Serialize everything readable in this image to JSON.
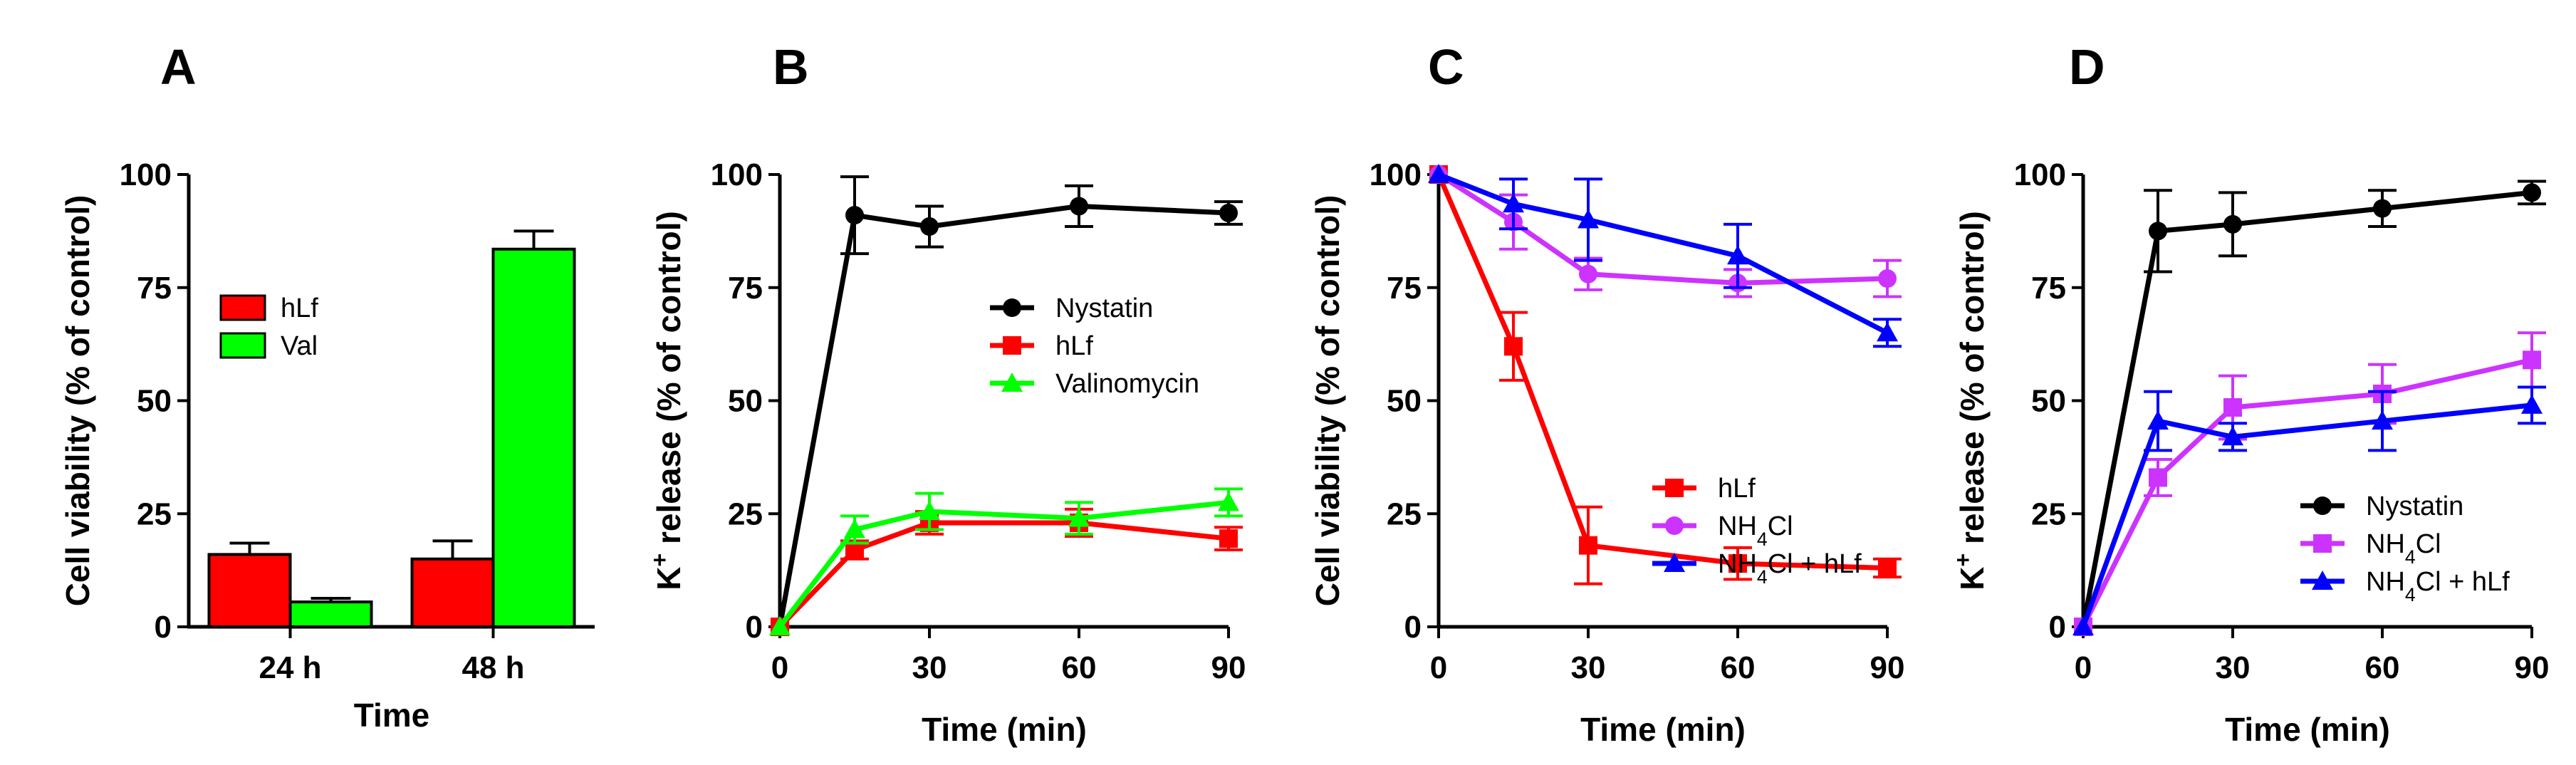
{
  "chart_data": [
    {
      "panel": "A",
      "type": "bar",
      "xlabel": "Time",
      "ylabel": "Cell viability (% of control)",
      "ylim": [
        0,
        100
      ],
      "yticks": [
        0,
        25,
        50,
        75,
        100
      ],
      "categories": [
        "24 h",
        "48 h"
      ],
      "series": [
        {
          "name": "hLf",
          "color": "#ff0000",
          "values": [
            16,
            15
          ],
          "errors": [
            2.5,
            4
          ]
        },
        {
          "name": "Val",
          "color": "#00ff00",
          "values": [
            5.5,
            83.5
          ],
          "errors": [
            0.8,
            4
          ]
        }
      ],
      "legend": "upper-left",
      "grid": false
    },
    {
      "panel": "B",
      "type": "line",
      "xlabel": "Time (min)",
      "ylabel": "K⁺ release (% of control)",
      "xlim": [
        0,
        90
      ],
      "ylim": [
        0,
        100
      ],
      "xticks": [
        0,
        30,
        60,
        90
      ],
      "yticks": [
        0,
        25,
        50,
        75,
        100
      ],
      "x": [
        0,
        15,
        30,
        60,
        90
      ],
      "series": [
        {
          "name": "Nystatin",
          "color": "#000000",
          "marker": "circle",
          "values": [
            0,
            91,
            88.5,
            93,
            91.5
          ],
          "errors": [
            0,
            8.5,
            4.5,
            4.5,
            2.5
          ]
        },
        {
          "name": "hLf",
          "color": "#ff0000",
          "marker": "square",
          "values": [
            0,
            17,
            23,
            23,
            19.5
          ],
          "errors": [
            0,
            2,
            2.5,
            3,
            2.5
          ]
        },
        {
          "name": "Valinomycin",
          "color": "#00ff00",
          "marker": "triangle",
          "values": [
            0,
            21.5,
            25.5,
            24,
            27.5
          ],
          "errors": [
            0,
            3,
            4,
            3.5,
            3
          ]
        }
      ],
      "legend": "right",
      "grid": false
    },
    {
      "panel": "C",
      "type": "line",
      "xlabel": "Time (min)",
      "ylabel": "Cell viability (% of control)",
      "xlim": [
        0,
        90
      ],
      "ylim": [
        0,
        100
      ],
      "xticks": [
        0,
        30,
        60,
        90
      ],
      "yticks": [
        0,
        25,
        50,
        75,
        100
      ],
      "x": [
        0,
        15,
        30,
        60,
        90
      ],
      "series": [
        {
          "name": "hLf",
          "color": "#ff0000",
          "marker": "square",
          "values": [
            100,
            62,
            18,
            14,
            13
          ],
          "errors": [
            0,
            7.5,
            8.5,
            3.5,
            2
          ]
        },
        {
          "name": "NH₄Cl",
          "color": "#cc33ff",
          "marker": "circle",
          "values": [
            100,
            89.5,
            78,
            76,
            77
          ],
          "errors": [
            0,
            6,
            3.5,
            3,
            4
          ]
        },
        {
          "name": "NH₄Cl + hLf",
          "color": "#0000ff",
          "marker": "triangle",
          "values": [
            100,
            93.5,
            90,
            82,
            65
          ],
          "errors": [
            0,
            5.5,
            9,
            7,
            3
          ]
        }
      ],
      "legend": "lower-right",
      "grid": false
    },
    {
      "panel": "D",
      "type": "line",
      "xlabel": "Time (min)",
      "ylabel": "K⁺ release (% of control)",
      "xlim": [
        0,
        90
      ],
      "ylim": [
        0,
        100
      ],
      "xticks": [
        0,
        30,
        60,
        90
      ],
      "yticks": [
        0,
        25,
        50,
        75,
        100
      ],
      "x": [
        0,
        15,
        30,
        60,
        90
      ],
      "series": [
        {
          "name": "Nystatin",
          "color": "#000000",
          "marker": "circle",
          "values": [
            0,
            87.5,
            89,
            92.5,
            96
          ],
          "errors": [
            0,
            9,
            7,
            4,
            2.5
          ]
        },
        {
          "name": "NH₄Cl",
          "color": "#cc33ff",
          "marker": "square",
          "values": [
            0,
            33,
            48.5,
            51.5,
            59
          ],
          "errors": [
            0,
            4,
            7,
            6.5,
            6
          ]
        },
        {
          "name": "NH₄Cl + hLf",
          "color": "#0000ff",
          "marker": "triangle",
          "values": [
            0,
            45.5,
            42,
            45.5,
            49
          ],
          "errors": [
            0,
            6.5,
            3,
            6.5,
            4
          ]
        }
      ],
      "legend": "lower-right",
      "grid": false
    }
  ]
}
